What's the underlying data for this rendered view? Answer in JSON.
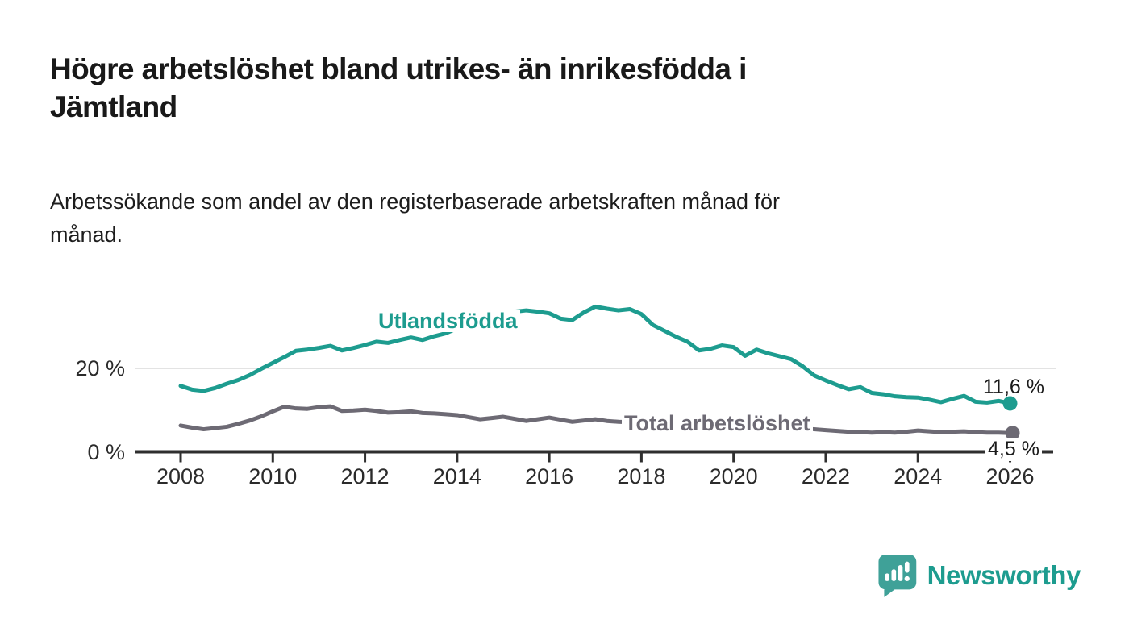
{
  "header": {
    "title_lines": [
      "Högre arbetslöshet bland utrikes- än inrikesfödda i",
      "Jämtland"
    ],
    "subtitle_lines": [
      "Arbetssökande som andel av den registerbaserade arbetskraften månad för",
      "månad."
    ]
  },
  "colors": {
    "teal": "#1d9c8f",
    "gray": "#6d6a74",
    "text_dark": "#1a1a1a",
    "axis": "#2f2f2f",
    "gridline": "#e3e3e3",
    "tick_label": "#2b2b2b"
  },
  "chart_data": {
    "type": "line",
    "title": "Högre arbetslöshet bland utrikes- än inrikesfödda i Jämtland",
    "subtitle": "Arbetssökande som andel av den registerbaserade arbetskraften månad för månad.",
    "xlabel": "",
    "ylabel": "",
    "x_ticks": [
      2008,
      2010,
      2012,
      2014,
      2016,
      2018,
      2020,
      2022,
      2024,
      2026
    ],
    "y_ticks": [
      {
        "value": 20,
        "label": "20 %"
      },
      {
        "value": 0,
        "label": "0 %"
      }
    ],
    "xlim": [
      2007,
      2026.9
    ],
    "ylim": [
      0,
      38
    ],
    "grid": "y-at-20-only",
    "legend_position": "inline-labels",
    "series": [
      {
        "name": "Utlandsfödda",
        "color": "#1d9c8f",
        "end_label": "11,6 %",
        "end_value": 11.6,
        "points": [
          [
            2008.0,
            15.8
          ],
          [
            2008.25,
            14.9
          ],
          [
            2008.5,
            14.6
          ],
          [
            2008.75,
            15.3
          ],
          [
            2009.0,
            16.3
          ],
          [
            2009.25,
            17.2
          ],
          [
            2009.5,
            18.4
          ],
          [
            2009.75,
            19.9
          ],
          [
            2010.0,
            21.3
          ],
          [
            2010.25,
            22.7
          ],
          [
            2010.5,
            24.2
          ],
          [
            2010.75,
            24.5
          ],
          [
            2011.0,
            24.9
          ],
          [
            2011.25,
            25.4
          ],
          [
            2011.5,
            24.3
          ],
          [
            2011.75,
            24.9
          ],
          [
            2012.0,
            25.6
          ],
          [
            2012.25,
            26.4
          ],
          [
            2012.5,
            26.1
          ],
          [
            2012.75,
            26.8
          ],
          [
            2013.0,
            27.4
          ],
          [
            2013.25,
            26.8
          ],
          [
            2013.5,
            27.7
          ],
          [
            2013.75,
            28.4
          ],
          [
            2014.0,
            29.6
          ],
          [
            2014.25,
            30.9
          ],
          [
            2014.5,
            32.0
          ],
          [
            2014.75,
            32.8
          ],
          [
            2015.0,
            33.2
          ],
          [
            2015.25,
            33.6
          ],
          [
            2015.5,
            33.9
          ],
          [
            2015.75,
            33.6
          ],
          [
            2016.0,
            33.2
          ],
          [
            2016.25,
            31.9
          ],
          [
            2016.5,
            31.6
          ],
          [
            2016.75,
            33.4
          ],
          [
            2017.0,
            34.8
          ],
          [
            2017.25,
            34.3
          ],
          [
            2017.5,
            33.9
          ],
          [
            2017.75,
            34.2
          ],
          [
            2018.0,
            33.0
          ],
          [
            2018.25,
            30.4
          ],
          [
            2018.5,
            29.0
          ],
          [
            2018.75,
            27.6
          ],
          [
            2019.0,
            26.4
          ],
          [
            2019.25,
            24.3
          ],
          [
            2019.5,
            24.7
          ],
          [
            2019.75,
            25.5
          ],
          [
            2020.0,
            25.1
          ],
          [
            2020.25,
            23.0
          ],
          [
            2020.5,
            24.5
          ],
          [
            2020.75,
            23.6
          ],
          [
            2021.0,
            22.9
          ],
          [
            2021.25,
            22.2
          ],
          [
            2021.5,
            20.5
          ],
          [
            2021.75,
            18.3
          ],
          [
            2022.0,
            17.1
          ],
          [
            2022.25,
            16.0
          ],
          [
            2022.5,
            15.0
          ],
          [
            2022.75,
            15.5
          ],
          [
            2023.0,
            14.1
          ],
          [
            2023.25,
            13.8
          ],
          [
            2023.5,
            13.3
          ],
          [
            2023.75,
            13.1
          ],
          [
            2024.0,
            13.0
          ],
          [
            2024.25,
            12.5
          ],
          [
            2024.5,
            11.9
          ],
          [
            2024.75,
            12.7
          ],
          [
            2025.0,
            13.4
          ],
          [
            2025.25,
            12.0
          ],
          [
            2025.5,
            11.8
          ],
          [
            2025.75,
            12.2
          ],
          [
            2026.0,
            11.6
          ]
        ]
      },
      {
        "name": "Total arbetslöshet",
        "color": "#6d6a74",
        "end_label": "4,5 %",
        "end_value": 4.5,
        "points": [
          [
            2008.0,
            6.3
          ],
          [
            2008.25,
            5.8
          ],
          [
            2008.5,
            5.4
          ],
          [
            2008.75,
            5.7
          ],
          [
            2009.0,
            6.0
          ],
          [
            2009.25,
            6.7
          ],
          [
            2009.5,
            7.5
          ],
          [
            2009.75,
            8.5
          ],
          [
            2010.0,
            9.7
          ],
          [
            2010.25,
            10.8
          ],
          [
            2010.5,
            10.4
          ],
          [
            2010.75,
            10.3
          ],
          [
            2011.0,
            10.7
          ],
          [
            2011.25,
            10.9
          ],
          [
            2011.5,
            9.8
          ],
          [
            2011.75,
            9.9
          ],
          [
            2012.0,
            10.1
          ],
          [
            2012.25,
            9.8
          ],
          [
            2012.5,
            9.4
          ],
          [
            2012.75,
            9.5
          ],
          [
            2013.0,
            9.7
          ],
          [
            2013.25,
            9.3
          ],
          [
            2013.5,
            9.2
          ],
          [
            2013.75,
            9.0
          ],
          [
            2014.0,
            8.8
          ],
          [
            2014.25,
            8.3
          ],
          [
            2014.5,
            7.8
          ],
          [
            2014.75,
            8.1
          ],
          [
            2015.0,
            8.4
          ],
          [
            2015.25,
            7.9
          ],
          [
            2015.5,
            7.4
          ],
          [
            2015.75,
            7.8
          ],
          [
            2016.0,
            8.2
          ],
          [
            2016.25,
            7.7
          ],
          [
            2016.5,
            7.2
          ],
          [
            2016.75,
            7.5
          ],
          [
            2017.0,
            7.8
          ],
          [
            2017.25,
            7.4
          ],
          [
            2017.5,
            7.2
          ],
          [
            2017.75,
            7.1
          ],
          [
            2018.0,
            6.9
          ],
          [
            2018.25,
            6.6
          ],
          [
            2018.5,
            6.4
          ],
          [
            2018.75,
            6.3
          ],
          [
            2019.0,
            6.2
          ],
          [
            2019.25,
            6.0
          ],
          [
            2019.5,
            5.9
          ],
          [
            2019.75,
            6.0
          ],
          [
            2020.0,
            6.1
          ],
          [
            2020.25,
            6.6
          ],
          [
            2020.5,
            6.9
          ],
          [
            2020.75,
            6.6
          ],
          [
            2021.0,
            6.3
          ],
          [
            2021.25,
            6.0
          ],
          [
            2021.5,
            5.7
          ],
          [
            2021.75,
            5.4
          ],
          [
            2022.0,
            5.2
          ],
          [
            2022.25,
            5.0
          ],
          [
            2022.5,
            4.8
          ],
          [
            2022.75,
            4.7
          ],
          [
            2023.0,
            4.6
          ],
          [
            2023.25,
            4.7
          ],
          [
            2023.5,
            4.6
          ],
          [
            2023.75,
            4.8
          ],
          [
            2024.0,
            5.1
          ],
          [
            2024.25,
            4.9
          ],
          [
            2024.5,
            4.7
          ],
          [
            2024.75,
            4.8
          ],
          [
            2025.0,
            4.9
          ],
          [
            2025.25,
            4.7
          ],
          [
            2025.5,
            4.6
          ],
          [
            2025.75,
            4.6
          ],
          [
            2026.0,
            4.5
          ]
        ]
      }
    ]
  },
  "logo": {
    "text": "Newsworthy",
    "icon": "speech-bubble-bar-chart"
  }
}
